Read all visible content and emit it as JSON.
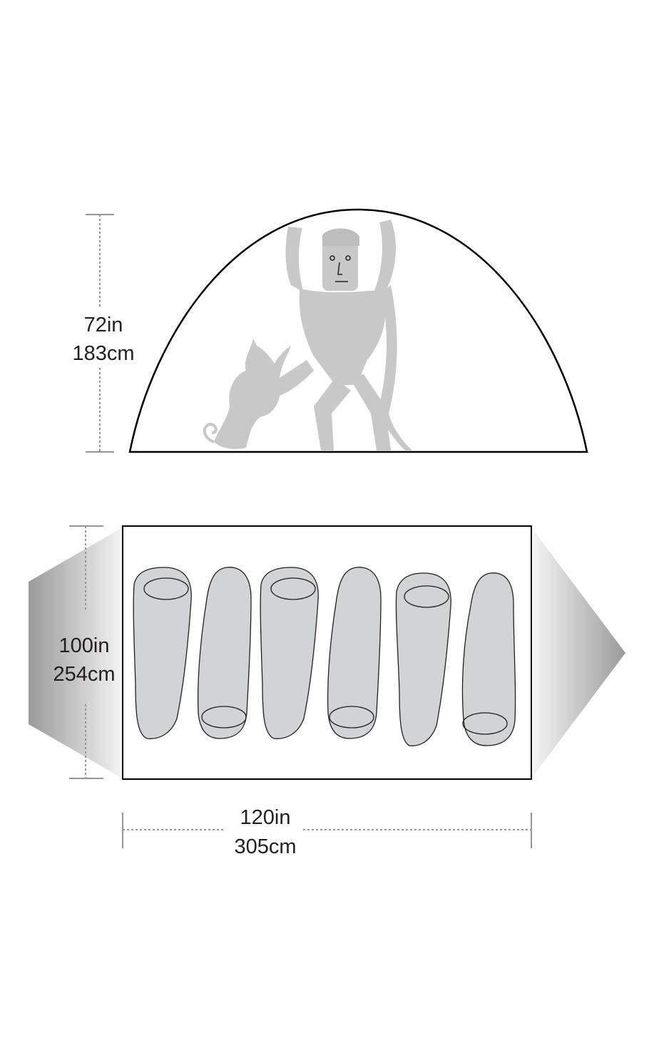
{
  "height": {
    "imperial": "72in",
    "metric": "183cm"
  },
  "width": {
    "imperial": "100in",
    "metric": "254cm"
  },
  "length": {
    "imperial": "120in",
    "metric": "305cm"
  },
  "sleeping_bags": 6,
  "colors": {
    "outline": "#000000",
    "figure": "#c8c8c8",
    "bag_fill": "#d2d3d4",
    "dimension_line": "#939598",
    "vestibule_dark": "#9a9a9a"
  },
  "icons": [
    "tent-side-profile",
    "person-and-dog-figure",
    "tent-floor-plan",
    "sleeping-bag-icon",
    "vestibule-left",
    "vestibule-right"
  ]
}
